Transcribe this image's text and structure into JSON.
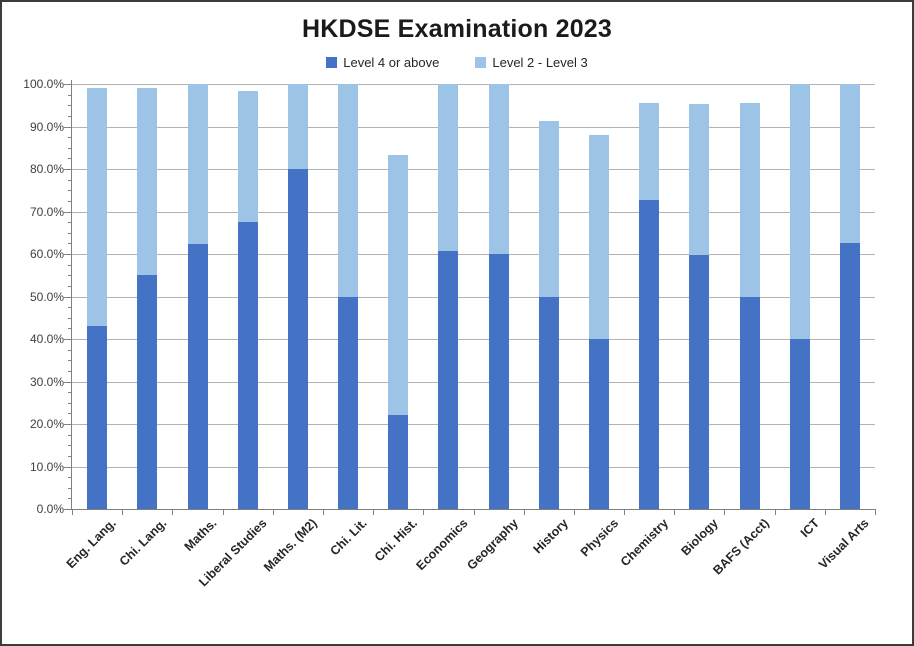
{
  "chart_data": {
    "type": "bar",
    "stacked": true,
    "title": "HKDSE Examination 2023",
    "xlabel": "",
    "ylabel": "",
    "ylim": [
      0,
      100
    ],
    "y_major_step": 10,
    "y_minor_step": 2.5,
    "y_tick_labels": [
      "0.0%",
      "10.0%",
      "20.0%",
      "30.0%",
      "40.0%",
      "50.0%",
      "60.0%",
      "70.0%",
      "80.0%",
      "90.0%",
      "100.0%"
    ],
    "grid": true,
    "legend_position": "top",
    "categories": [
      "Eng. Lang.",
      "Chi. Lang.",
      "Maths.",
      "Liberal Studies",
      "Maths. (M2)",
      "Chi. Lit.",
      "Chi. Hist.",
      "Economics",
      "Geography",
      "History",
      "Physics",
      "Chemistry",
      "Biology",
      "BAFS (Acct)",
      "ICT",
      "Visual Arts"
    ],
    "series": [
      {
        "name": "Level 4 or above",
        "color": "#4472C4",
        "values": [
          43.0,
          55.0,
          62.3,
          67.5,
          80.0,
          50.0,
          22.2,
          60.6,
          60.0,
          50.0,
          40.0,
          72.7,
          59.7,
          50.0,
          40.0,
          62.5
        ]
      },
      {
        "name": "Level 2 - Level 3",
        "color": "#9DC3E6",
        "values": [
          56.0,
          44.0,
          37.7,
          30.8,
          20.0,
          50.0,
          61.1,
          39.4,
          40.0,
          41.4,
          48.0,
          22.8,
          35.5,
          45.5,
          60.0,
          37.5
        ]
      }
    ]
  },
  "styles": {
    "background": "#FFFFFF",
    "border_color": "#3C3C3C",
    "gridline_color": "#B3B3B3",
    "axis_color": "#808080",
    "y_label_color": "#3F3F3F",
    "x_label_color": "#262626",
    "title_color": "#1A1A1A"
  }
}
